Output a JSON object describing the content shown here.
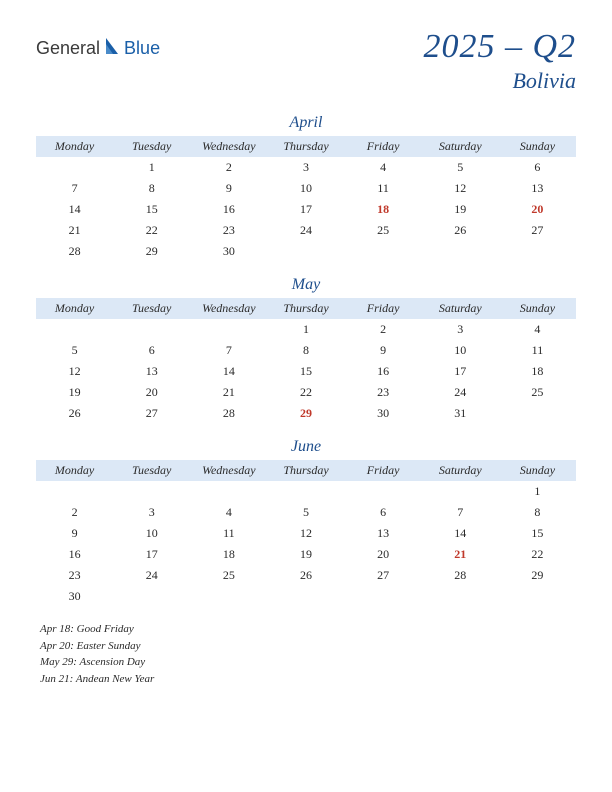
{
  "logo": {
    "general": "General",
    "blue": "Blue"
  },
  "header": {
    "quarter": "2025 – Q2",
    "country": "Bolivia"
  },
  "weekdays": [
    "Monday",
    "Tuesday",
    "Wednesday",
    "Thursday",
    "Friday",
    "Saturday",
    "Sunday"
  ],
  "colors": {
    "header_bg": "#dce8f6",
    "title_color": "#1e4e8c",
    "text_color": "#2a2a2a",
    "holiday_color": "#c0392b",
    "logo_blue": "#1a5fa8",
    "background": "#ffffff"
  },
  "typography": {
    "quarter_fontsize": 34,
    "country_fontsize": 22,
    "month_fontsize": 16,
    "weekday_fontsize": 12,
    "day_fontsize": 12,
    "holiday_list_fontsize": 11
  },
  "months": [
    {
      "name": "April",
      "weeks": [
        [
          null,
          1,
          2,
          3,
          4,
          5,
          6
        ],
        [
          7,
          8,
          9,
          10,
          11,
          12,
          13
        ],
        [
          14,
          15,
          16,
          17,
          18,
          19,
          20
        ],
        [
          21,
          22,
          23,
          24,
          25,
          26,
          27
        ],
        [
          28,
          29,
          30,
          null,
          null,
          null,
          null
        ]
      ],
      "holidays": [
        18,
        20
      ]
    },
    {
      "name": "May",
      "weeks": [
        [
          null,
          null,
          null,
          1,
          2,
          3,
          4
        ],
        [
          5,
          6,
          7,
          8,
          9,
          10,
          11
        ],
        [
          12,
          13,
          14,
          15,
          16,
          17,
          18
        ],
        [
          19,
          20,
          21,
          22,
          23,
          24,
          25
        ],
        [
          26,
          27,
          28,
          29,
          30,
          31,
          null
        ]
      ],
      "holidays": [
        29
      ]
    },
    {
      "name": "June",
      "weeks": [
        [
          null,
          null,
          null,
          null,
          null,
          null,
          1
        ],
        [
          2,
          3,
          4,
          5,
          6,
          7,
          8
        ],
        [
          9,
          10,
          11,
          12,
          13,
          14,
          15
        ],
        [
          16,
          17,
          18,
          19,
          20,
          21,
          22
        ],
        [
          23,
          24,
          25,
          26,
          27,
          28,
          29
        ],
        [
          30,
          null,
          null,
          null,
          null,
          null,
          null
        ]
      ],
      "holidays": [
        21
      ]
    }
  ],
  "holiday_list": [
    "Apr 18: Good Friday",
    "Apr 20: Easter Sunday",
    "May 29: Ascension Day",
    "Jun 21: Andean New Year"
  ]
}
